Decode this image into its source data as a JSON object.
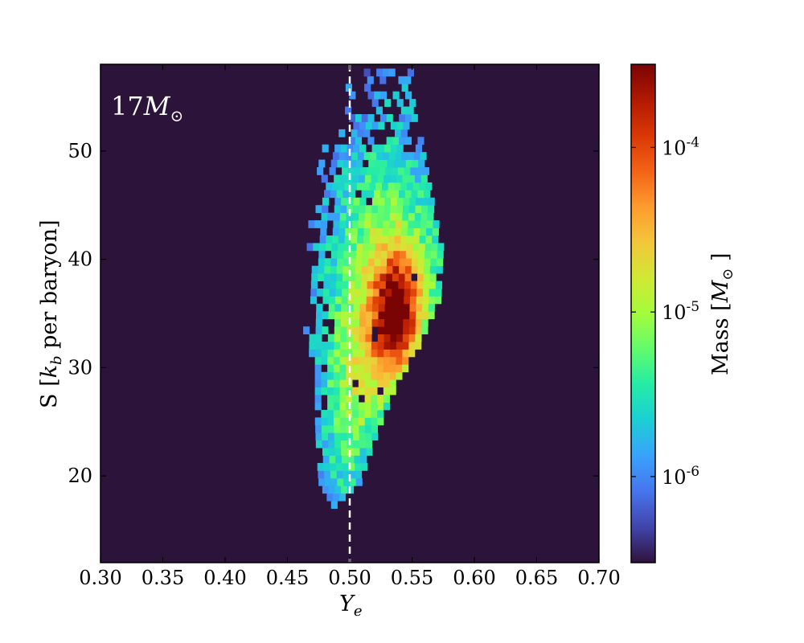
{
  "chart_data": {
    "type": "heatmap",
    "panel_label": "17",
    "panel_label_symbol": "M",
    "panel_label_sub": "⊙",
    "xlabel": "Y",
    "xlabel_sub": "e",
    "ylabel_pre": "S [",
    "ylabel_var": "k",
    "ylabel_sub": "b",
    "ylabel_post": " per baryon]",
    "xlim": [
      0.3,
      0.7
    ],
    "ylim": [
      12,
      58
    ],
    "x_ticks": [
      "0.30",
      "0.35",
      "0.40",
      "0.45",
      "0.50",
      "0.55",
      "0.60",
      "0.65",
      "0.70"
    ],
    "y_ticks": [
      "20",
      "30",
      "40",
      "50"
    ],
    "reference_line_x": 0.5,
    "reference_line_style": "dashed",
    "background_color": "#2c1339",
    "colorbar": {
      "label": "Mass [",
      "label_var": "M",
      "label_sub": "⊙",
      "label_post": " ]",
      "scale": "log",
      "range": [
        3e-07,
        0.00032
      ],
      "ticks": [
        {
          "base": "10",
          "exp": "-4",
          "value": 0.0001
        },
        {
          "base": "10",
          "exp": "-5",
          "value": 1e-05
        },
        {
          "base": "10",
          "exp": "-6",
          "value": 1e-06
        }
      ],
      "colormap": [
        "#30123b",
        "#4145ab",
        "#4675ed",
        "#39a2fc",
        "#1bcfd4",
        "#24eca6",
        "#61fc6c",
        "#a4fc3b",
        "#d1e834",
        "#f3c63a",
        "#fe9b2d",
        "#f36315",
        "#d93806",
        "#b11901",
        "#7a0403"
      ]
    },
    "density_model": {
      "bin_dx": 0.005,
      "bin_dy": 0.7,
      "peak_mass": 0.0003,
      "peak_x": 0.535,
      "peak_y": 34.5,
      "x_min_at_y": [
        [
          17,
          0.475
        ],
        [
          19,
          0.465
        ],
        [
          22,
          0.463
        ],
        [
          25,
          0.462
        ],
        [
          30,
          0.462
        ],
        [
          35,
          0.463
        ],
        [
          40,
          0.465
        ],
        [
          45,
          0.468
        ],
        [
          50,
          0.478
        ],
        [
          55,
          0.49
        ],
        [
          58,
          0.5
        ]
      ],
      "x_max_at_y": [
        [
          17,
          0.485
        ],
        [
          19,
          0.5
        ],
        [
          22,
          0.51
        ],
        [
          25,
          0.52
        ],
        [
          28,
          0.53
        ],
        [
          30,
          0.54
        ],
        [
          33,
          0.555
        ],
        [
          36,
          0.565
        ],
        [
          40,
          0.567
        ],
        [
          45,
          0.56
        ],
        [
          50,
          0.552
        ],
        [
          55,
          0.545
        ],
        [
          58,
          0.54
        ]
      ],
      "y_min": 17,
      "y_max": 58
    }
  }
}
